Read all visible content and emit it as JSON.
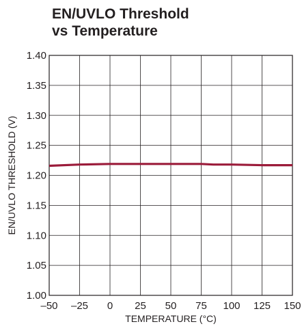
{
  "chart_data": {
    "type": "line",
    "title": [
      "EN/UVLO Threshold",
      "vs Temperature"
    ],
    "xlabel": "TEMPERATURE (°C)",
    "ylabel": "EN/UVLO THRESHOLD (V)",
    "xlim": [
      -50,
      150
    ],
    "ylim": [
      1.0,
      1.4
    ],
    "xticks": [
      -50,
      -25,
      0,
      25,
      50,
      75,
      100,
      125,
      150
    ],
    "yticks": [
      1.0,
      1.05,
      1.1,
      1.15,
      1.2,
      1.25,
      1.3,
      1.35,
      1.4
    ],
    "xtick_labels": [
      "–50",
      "–25",
      "0",
      "25",
      "50",
      "75",
      "100",
      "125",
      "150"
    ],
    "ytick_labels": [
      "1.00",
      "1.05",
      "1.10",
      "1.15",
      "1.20",
      "1.25",
      "1.30",
      "1.35",
      "1.40"
    ],
    "grid": true,
    "series": [
      {
        "color": "#9b1b3a",
        "x": [
          -50,
          -25,
          0,
          25,
          50,
          75,
          85,
          100,
          125,
          150
        ],
        "y": [
          1.216,
          1.218,
          1.219,
          1.219,
          1.219,
          1.219,
          1.218,
          1.218,
          1.217,
          1.217
        ]
      }
    ]
  }
}
